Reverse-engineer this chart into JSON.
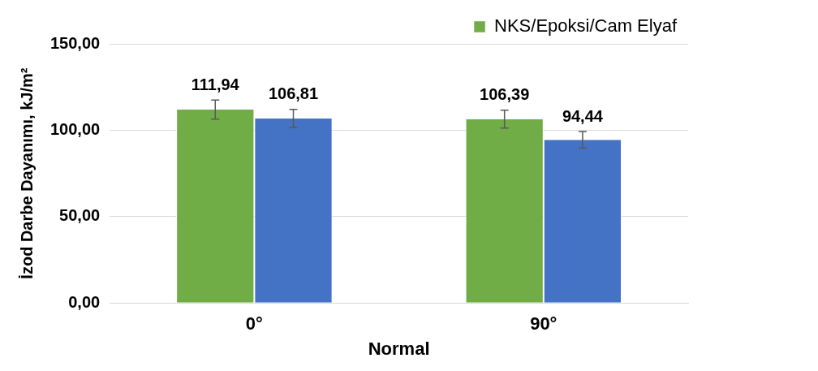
{
  "chart_data": {
    "type": "bar",
    "xlabel": "Normal",
    "ylabel": "İzod Darbe Dayanımı, kJ/m²",
    "categories": [
      "0°",
      "90°"
    ],
    "series": [
      {
        "name": "NKS/Epoksi/Cam Elyaf",
        "color": "#70ad47",
        "values": [
          111.94,
          106.39
        ],
        "errors": [
          5.5,
          5.2
        ],
        "value_labels": [
          "111,94",
          "106,39"
        ]
      },
      {
        "color": "#4472c4",
        "values": [
          106.81,
          94.44
        ],
        "errors": [
          5.2,
          4.8
        ],
        "value_labels": [
          "106,81",
          "94,44"
        ]
      }
    ],
    "ylim": [
      0,
      150
    ],
    "yticks": [
      {
        "value": 0,
        "label": "0,00"
      },
      {
        "value": 50,
        "label": "50,00"
      },
      {
        "value": 100,
        "label": "100,00"
      },
      {
        "value": 150,
        "label": "150,00"
      }
    ],
    "grid": "y",
    "legend": "top right"
  }
}
